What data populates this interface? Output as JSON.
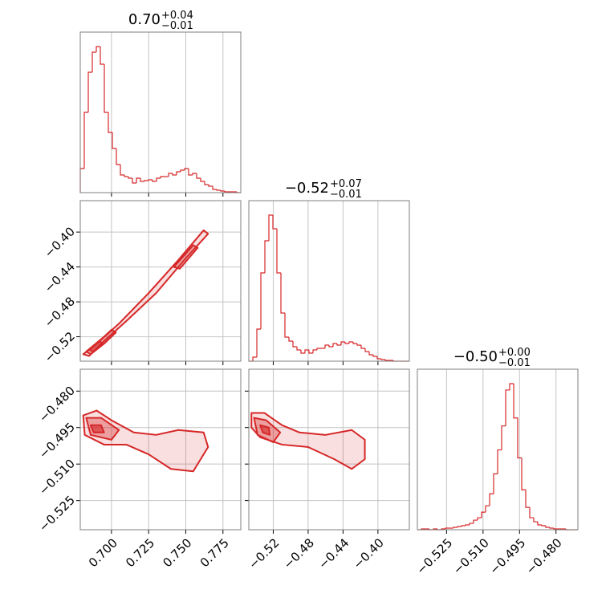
{
  "chart_data": {
    "type": "corner",
    "color": "#d62728",
    "grid": true,
    "params": [
      {
        "title": {
          "value": "0.70",
          "plus": "+0.04",
          "minus": "−0.01"
        },
        "lim": [
          0.679,
          0.787
        ],
        "ticks": [
          {
            "value": 0.7,
            "label": "0.700"
          },
          {
            "value": 0.725,
            "label": "0.725"
          },
          {
            "value": 0.75,
            "label": "0.750"
          },
          {
            "value": 0.775,
            "label": "0.775"
          }
        ],
        "hist": {
          "bins": [
            0.679,
            0.6817,
            0.6844,
            0.6871,
            0.6898,
            0.6925,
            0.6952,
            0.6979,
            0.7006,
            0.7033,
            0.706,
            0.7087,
            0.7114,
            0.7141,
            0.7168,
            0.7195,
            0.7222,
            0.7249,
            0.7276,
            0.7303,
            0.733,
            0.7357,
            0.7384,
            0.7411,
            0.7438,
            0.7465,
            0.7492,
            0.7519,
            0.7546,
            0.7573,
            0.76,
            0.7627,
            0.7654,
            0.7681,
            0.7708,
            0.7735,
            0.7762,
            0.7789,
            0.7816,
            0.7843,
            0.787
          ],
          "counts": [
            30,
            100,
            150,
            175,
            182,
            160,
            100,
            75,
            55,
            35,
            22,
            20,
            18,
            12,
            18,
            14,
            15,
            16,
            14,
            18,
            20,
            20,
            24,
            22,
            26,
            28,
            30,
            22,
            24,
            18,
            14,
            10,
            8,
            4,
            3,
            2,
            1,
            1,
            1,
            0
          ]
        }
      },
      {
        "title": {
          "value": "−0.52",
          "plus": "+0.07",
          "minus": "−0.01"
        },
        "lim": [
          -0.548,
          -0.364
        ],
        "ticks": [
          {
            "value": -0.52,
            "label": "−0.52"
          },
          {
            "value": -0.48,
            "label": "−0.48"
          },
          {
            "value": -0.44,
            "label": "−0.44"
          },
          {
            "value": -0.4,
            "label": "−0.40"
          }
        ],
        "hist": {
          "bins": [
            -0.548,
            -0.5434,
            -0.5388,
            -0.5342,
            -0.5296,
            -0.525,
            -0.5204,
            -0.5158,
            -0.5112,
            -0.5066,
            -0.502,
            -0.4974,
            -0.4928,
            -0.4882,
            -0.4836,
            -0.479,
            -0.4744,
            -0.4698,
            -0.4652,
            -0.4606,
            -0.456,
            -0.4514,
            -0.4468,
            -0.4422,
            -0.4376,
            -0.433,
            -0.4284,
            -0.4238,
            -0.4192,
            -0.4146,
            -0.41,
            -0.4054,
            -0.4008,
            -0.3962,
            -0.3916,
            -0.387,
            -0.3824,
            -0.3778,
            -0.3732,
            -0.3686,
            -0.364
          ],
          "counts": [
            0,
            5,
            40,
            110,
            150,
            182,
            165,
            110,
            60,
            30,
            25,
            18,
            14,
            10,
            14,
            10,
            14,
            16,
            16,
            20,
            18,
            22,
            20,
            24,
            22,
            24,
            22,
            20,
            16,
            12,
            8,
            6,
            3,
            2,
            1,
            1,
            0,
            0,
            0,
            0
          ]
        }
      },
      {
        "title": {
          "value": "−0.50",
          "plus": "+0.00",
          "minus": "−0.01"
        },
        "lim": [
          -0.537,
          -0.471
        ],
        "ticks": [
          {
            "value": -0.525,
            "label": "−0.525"
          },
          {
            "value": -0.51,
            "label": "−0.510"
          },
          {
            "value": -0.495,
            "label": "−0.495"
          },
          {
            "value": -0.48,
            "label": "−0.480"
          }
        ],
        "hist": {
          "bins": [
            -0.537,
            -0.53535,
            -0.5337,
            -0.53205,
            -0.5304,
            -0.52875,
            -0.5271,
            -0.52545,
            -0.5238,
            -0.52215,
            -0.5205,
            -0.51885,
            -0.5172,
            -0.51555,
            -0.5139,
            -0.51225,
            -0.5106,
            -0.50895,
            -0.5073,
            -0.50565,
            -0.504,
            -0.50235,
            -0.5007,
            -0.49905,
            -0.4974,
            -0.49575,
            -0.4941,
            -0.49245,
            -0.4908,
            -0.48915,
            -0.4875,
            -0.48585,
            -0.4842,
            -0.48255,
            -0.4809,
            -0.47925,
            -0.4776,
            -0.47595,
            -0.4743,
            -0.47265,
            -0.471
          ],
          "counts": [
            0,
            1,
            1,
            0,
            1,
            0,
            1,
            2,
            2,
            3,
            4,
            5,
            6,
            8,
            12,
            15,
            22,
            30,
            45,
            70,
            100,
            130,
            175,
            183,
            140,
            90,
            50,
            28,
            15,
            10,
            6,
            5,
            3,
            2,
            1,
            1,
            1,
            0,
            0,
            0
          ]
        }
      }
    ],
    "pairs": [
      {
        "x": 0,
        "y": 1,
        "contours": [
          [
            [
              [
                0.681,
                -0.54
              ],
              [
                0.69,
                -0.528
              ],
              [
                0.705,
                -0.505
              ],
              [
                0.725,
                -0.47
              ],
              [
                0.745,
                -0.432
              ],
              [
                0.762,
                -0.398
              ],
              [
                0.765,
                -0.402
              ],
              [
                0.75,
                -0.43
              ],
              [
                0.73,
                -0.47
              ],
              [
                0.71,
                -0.502
              ],
              [
                0.695,
                -0.525
              ],
              [
                0.685,
                -0.542
              ]
            ]
          ],
          [
            [
              [
                0.683,
                -0.537
              ],
              [
                0.695,
                -0.52
              ],
              [
                0.7,
                -0.512
              ],
              [
                0.703,
                -0.515
              ],
              [
                0.695,
                -0.528
              ],
              [
                0.686,
                -0.54
              ]
            ],
            [
              [
                0.742,
                -0.44
              ],
              [
                0.755,
                -0.415
              ],
              [
                0.758,
                -0.418
              ],
              [
                0.746,
                -0.442
              ]
            ]
          ],
          [
            [
              [
                0.685,
                -0.535
              ],
              [
                0.692,
                -0.525
              ],
              [
                0.694,
                -0.528
              ],
              [
                0.688,
                -0.537
              ]
            ]
          ]
        ]
      },
      {
        "x": 0,
        "y": 2,
        "contours": [
          [
            [
              [
                0.681,
                -0.49
              ],
              [
                0.69,
                -0.488
              ],
              [
                0.7,
                -0.492
              ],
              [
                0.715,
                -0.497
              ],
              [
                0.73,
                -0.498
              ],
              [
                0.745,
                -0.496
              ],
              [
                0.762,
                -0.497
              ],
              [
                0.765,
                -0.503
              ],
              [
                0.755,
                -0.513
              ],
              [
                0.74,
                -0.512
              ],
              [
                0.725,
                -0.506
              ],
              [
                0.71,
                -0.502
              ],
              [
                0.695,
                -0.502
              ],
              [
                0.682,
                -0.498
              ]
            ]
          ],
          [
            [
              [
                0.683,
                -0.491
              ],
              [
                0.693,
                -0.491
              ],
              [
                0.705,
                -0.496
              ],
              [
                0.7,
                -0.5
              ],
              [
                0.686,
                -0.498
              ]
            ]
          ],
          [
            [
              [
                0.686,
                -0.494
              ],
              [
                0.693,
                -0.494
              ],
              [
                0.695,
                -0.497
              ],
              [
                0.688,
                -0.497
              ]
            ]
          ]
        ]
      },
      {
        "x": 1,
        "y": 2,
        "contours": [
          [
            [
              [
                -0.545,
                -0.489
              ],
              [
                -0.53,
                -0.489
              ],
              [
                -0.51,
                -0.494
              ],
              [
                -0.49,
                -0.497
              ],
              [
                -0.46,
                -0.498
              ],
              [
                -0.43,
                -0.496
              ],
              [
                -0.415,
                -0.5
              ],
              [
                -0.415,
                -0.508
              ],
              [
                -0.43,
                -0.512
              ],
              [
                -0.45,
                -0.508
              ],
              [
                -0.48,
                -0.503
              ],
              [
                -0.51,
                -0.502
              ],
              [
                -0.535,
                -0.499
              ],
              [
                -0.545,
                -0.495
              ]
            ]
          ],
          [
            [
              [
                -0.542,
                -0.491
              ],
              [
                -0.528,
                -0.492
              ],
              [
                -0.512,
                -0.497
              ],
              [
                -0.52,
                -0.501
              ],
              [
                -0.538,
                -0.498
              ]
            ]
          ],
          [
            [
              [
                -0.535,
                -0.494
              ],
              [
                -0.525,
                -0.495
              ],
              [
                -0.524,
                -0.498
              ],
              [
                -0.532,
                -0.497
              ]
            ]
          ]
        ]
      }
    ]
  }
}
